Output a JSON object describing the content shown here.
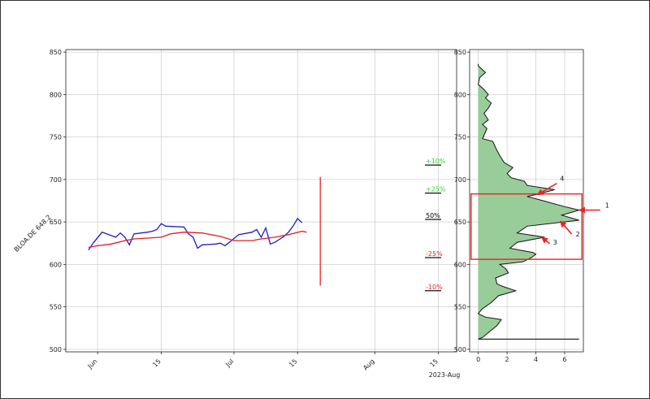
{
  "chart_data": [
    {
      "type": "line",
      "ylabel": "BLOA.DE 648.2",
      "xlabel": "2023-Aug",
      "ylim": [
        497,
        853
      ],
      "yticks": [
        500,
        550,
        600,
        650,
        700,
        750,
        800,
        850
      ],
      "xticks": [
        {
          "label": "Jun",
          "date": "2023-06-01"
        },
        {
          "label": "15",
          "date": "2023-06-15"
        },
        {
          "label": "Jul",
          "date": "2023-07-01"
        },
        {
          "label": "15",
          "date": "2023-07-15"
        },
        {
          "label": "Aug",
          "date": "2023-08-01"
        },
        {
          "label": "15",
          "date": "2023-08-15"
        }
      ],
      "grid": true,
      "series": [
        {
          "color": "#1a1acc",
          "points": [
            [
              "2023-05-30",
              617
            ],
            [
              "2023-05-31",
              625
            ],
            [
              "2023-06-02",
              638
            ],
            [
              "2023-06-05",
              632
            ],
            [
              "2023-06-06",
              637
            ],
            [
              "2023-06-07",
              632
            ],
            [
              "2023-06-08",
              623
            ],
            [
              "2023-06-09",
              636
            ],
            [
              "2023-06-12",
              638
            ],
            [
              "2023-06-13",
              639
            ],
            [
              "2023-06-14",
              641
            ],
            [
              "2023-06-15",
              648
            ],
            [
              "2023-06-16",
              645
            ],
            [
              "2023-06-20",
              644
            ],
            [
              "2023-06-21",
              636
            ],
            [
              "2023-06-22",
              632
            ],
            [
              "2023-06-23",
              619
            ],
            [
              "2023-06-24",
              623
            ],
            [
              "2023-06-27",
              624
            ],
            [
              "2023-06-28",
              625
            ],
            [
              "2023-06-29",
              622
            ],
            [
              "2023-06-30",
              626
            ],
            [
              "2023-07-02",
              635
            ],
            [
              "2023-07-05",
              638
            ],
            [
              "2023-07-06",
              641
            ],
            [
              "2023-07-07",
              632
            ],
            [
              "2023-07-08",
              643
            ],
            [
              "2023-07-09",
              624
            ],
            [
              "2023-07-10",
              626
            ],
            [
              "2023-07-12",
              633
            ],
            [
              "2023-07-13",
              638
            ],
            [
              "2023-07-14",
              645
            ],
            [
              "2023-07-15",
              654
            ],
            [
              "2023-07-16",
              649
            ]
          ]
        },
        {
          "color": "#dd2020",
          "points": [
            [
              "2023-05-30",
              620
            ],
            [
              "2023-06-01",
              622
            ],
            [
              "2023-06-04",
              624
            ],
            [
              "2023-06-07",
              628
            ],
            [
              "2023-06-09",
              630
            ],
            [
              "2023-06-12",
              631
            ],
            [
              "2023-06-15",
              632
            ],
            [
              "2023-06-17",
              636
            ],
            [
              "2023-06-20",
              638
            ],
            [
              "2023-06-24",
              637
            ],
            [
              "2023-06-28",
              633
            ],
            [
              "2023-07-01",
              628
            ],
            [
              "2023-07-05",
              628
            ],
            [
              "2023-07-07",
              630
            ],
            [
              "2023-07-10",
              632
            ],
            [
              "2023-07-13",
              635
            ],
            [
              "2023-07-16",
              639
            ],
            [
              "2023-07-17",
              638
            ]
          ]
        }
      ],
      "marker_line": {
        "date": "2023-07-20",
        "y_from": 575,
        "y_to": 703,
        "color": "#ee2222"
      },
      "levels": [
        {
          "label": "+10%",
          "y": 717,
          "color": "#22dd22"
        },
        {
          "label": "+25%",
          "y": 684,
          "color": "#22dd22"
        },
        {
          "label": "50%",
          "y": 653,
          "color": "#000000"
        },
        {
          "label": "-25%",
          "y": 608,
          "color": "#ee2222"
        },
        {
          "label": "-10%",
          "y": 569,
          "color": "#ee2222"
        }
      ]
    },
    {
      "type": "area",
      "orientation": "horizontal",
      "xlim": [
        -0.6,
        7.3
      ],
      "xticks": [
        0,
        2,
        4,
        6
      ],
      "ylim": [
        497,
        853
      ],
      "yticks": [
        500,
        550,
        600,
        650,
        700,
        750,
        800,
        850
      ],
      "grid": true,
      "fill_color": "#98cc98",
      "profile": [
        [
          512,
          0
        ],
        [
          514,
          0.3
        ],
        [
          521,
          0.8
        ],
        [
          528,
          1.3
        ],
        [
          535,
          1.6
        ],
        [
          538,
          0.5
        ],
        [
          542,
          0
        ],
        [
          548,
          0.3
        ],
        [
          555,
          0.9
        ],
        [
          563,
          1.4
        ],
        [
          569,
          2.6
        ],
        [
          574,
          1.7
        ],
        [
          577,
          1.3
        ],
        [
          584,
          1.2
        ],
        [
          590,
          2.1
        ],
        [
          595,
          1.9
        ],
        [
          600,
          1.5
        ],
        [
          603,
          3.1
        ],
        [
          608,
          3.7
        ],
        [
          612,
          4.0
        ],
        [
          614,
          3.8
        ],
        [
          619,
          2.2
        ],
        [
          626,
          2.7
        ],
        [
          632,
          4.6
        ],
        [
          637,
          2.7
        ],
        [
          645,
          3.4
        ],
        [
          652,
          7.0
        ],
        [
          658,
          5.8
        ],
        [
          664,
          7.0
        ],
        [
          668,
          6.0
        ],
        [
          675,
          4.5
        ],
        [
          680,
          3.4
        ],
        [
          683,
          4.2
        ],
        [
          688,
          5.3
        ],
        [
          693,
          3.4
        ],
        [
          698,
          3.2
        ],
        [
          702,
          2.3
        ],
        [
          707,
          2.0
        ],
        [
          714,
          2.4
        ],
        [
          720,
          1.8
        ],
        [
          728,
          1.5
        ],
        [
          734,
          1.3
        ],
        [
          745,
          1.0
        ],
        [
          748,
          0.3
        ],
        [
          752,
          0.4
        ],
        [
          760,
          0.6
        ],
        [
          765,
          0.3
        ],
        [
          770,
          0.7
        ],
        [
          778,
          0.4
        ],
        [
          784,
          0.7
        ],
        [
          790,
          0.9
        ],
        [
          796,
          0.5
        ],
        [
          800,
          0.7
        ],
        [
          806,
          0.4
        ],
        [
          812,
          0
        ],
        [
          820,
          0.1
        ],
        [
          826,
          0.5
        ],
        [
          834,
          0
        ],
        [
          836,
          0
        ]
      ],
      "baseline": {
        "y": 512,
        "x_from": 0,
        "x_to": 7.0
      },
      "box": {
        "y_from": 606,
        "y_to": 683,
        "x_from": -0.5,
        "x_to": 7.2,
        "color": "#ee2222"
      },
      "annotations": [
        {
          "label": "1",
          "x": 7.0,
          "y": 664
        },
        {
          "label": "2",
          "x": 5.7,
          "y": 651
        },
        {
          "label": "3",
          "x": 4.4,
          "y": 632
        },
        {
          "label": "4",
          "x": 4.1,
          "y": 682
        }
      ]
    }
  ]
}
